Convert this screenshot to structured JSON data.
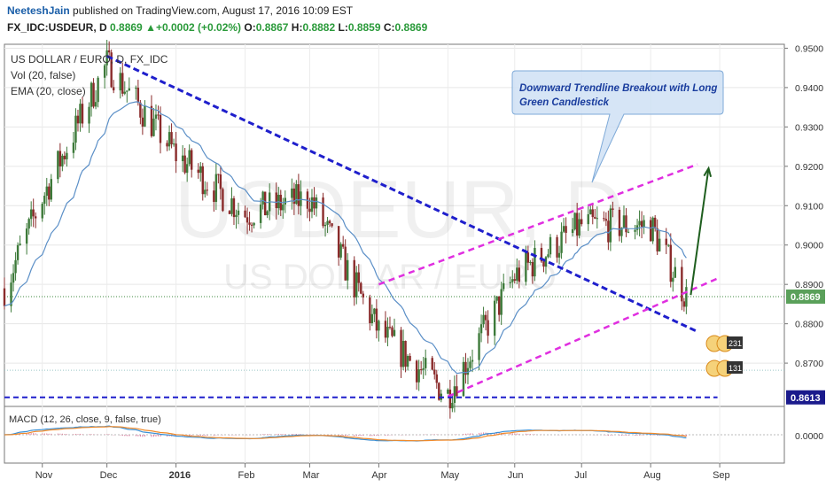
{
  "header": {
    "author": "NeeteshJain",
    "published": "published on TradingView.com, August 17, 2016 10:09 EST",
    "symbol": "FX_IDC:USDEUR, D",
    "last": "0.8869",
    "change": "+0.0002 (+0.02%)",
    "open_label": "O:",
    "open": "0.8867",
    "high_label": "H:",
    "high": "0.8882",
    "low_label": "L:",
    "low": "0.8859",
    "close_label": "C:",
    "close": "0.8869"
  },
  "legend": {
    "line1": "US DOLLAR / EURO, D, FX_IDC",
    "line2": "Vol (20, false)",
    "line3": "EMA (20, close)"
  },
  "watermark": {
    "big": "USDEUR, D",
    "small": "US DOLLAR / EURO"
  },
  "annotation": {
    "line1": "Downward Trendline Breakout with Long",
    "line2": "Green Candlestick"
  },
  "price_axis": {
    "labels": [
      "0.9500",
      "0.9400",
      "0.9300",
      "0.9200",
      "0.9100",
      "0.9000",
      "0.8900",
      "0.8800",
      "0.8700"
    ],
    "values": [
      0.95,
      0.94,
      0.93,
      0.92,
      0.91,
      0.9,
      0.89,
      0.88,
      0.87
    ],
    "last_price_tag": "0.8869",
    "support_tag": "0.8613"
  },
  "time_axis": {
    "labels": [
      "Nov",
      "Dec",
      "2016",
      "Feb",
      "Mar",
      "Apr",
      "May",
      "Jun",
      "Jul",
      "Aug",
      "Sep"
    ],
    "bold_label": "2016"
  },
  "macd": {
    "label": "MACD (12, 26, close, 9, false, true)",
    "zero_label": "0.0000"
  },
  "event_flags": {
    "top": "231",
    "bottom": "131"
  },
  "colors": {
    "up": "#3d7a3a",
    "down": "#8a2b2b",
    "ema": "#5b8fc7",
    "downtrend": "#1f1fcc",
    "channel": "#e02fe0",
    "support": "#1f1fcc",
    "arrow": "#1e5e1e",
    "macd": "#3a8fd4",
    "signal": "#f08a2a"
  },
  "chart_data": {
    "type": "candlestick",
    "title": "US DOLLAR / EURO, D, FX_IDC",
    "ylim": [
      0.859,
      0.951
    ],
    "x": [
      "2015-10-16",
      "2015-11-02",
      "2015-12-01",
      "2016-01-01",
      "2016-02-01",
      "2016-03-01",
      "2016-04-01",
      "2016-05-02",
      "2016-06-01",
      "2016-07-01",
      "2016-08-01",
      "2016-08-17"
    ],
    "close": [
      0.889,
      0.912,
      0.946,
      0.923,
      0.908,
      0.912,
      0.878,
      0.862,
      0.892,
      0.905,
      0.905,
      0.8869
    ],
    "trendlines": [
      {
        "name": "downtrend",
        "points": [
          [
            "2015-12-01",
            0.948
          ],
          [
            "2016-08-22",
            0.878
          ]
        ]
      },
      {
        "name": "channel-upper",
        "points": [
          [
            "2016-04-01",
            0.89
          ],
          [
            "2016-08-22",
            0.9205
          ]
        ]
      },
      {
        "name": "channel-lower",
        "points": [
          [
            "2016-05-02",
            0.8615
          ],
          [
            "2016-08-31",
            0.8915
          ]
        ]
      },
      {
        "name": "support",
        "points": [
          [
            "2015-10-16",
            0.8613
          ],
          [
            "2016-08-31",
            0.8613
          ]
        ]
      }
    ],
    "last_price": 0.8869,
    "support_level": 0.8613
  }
}
